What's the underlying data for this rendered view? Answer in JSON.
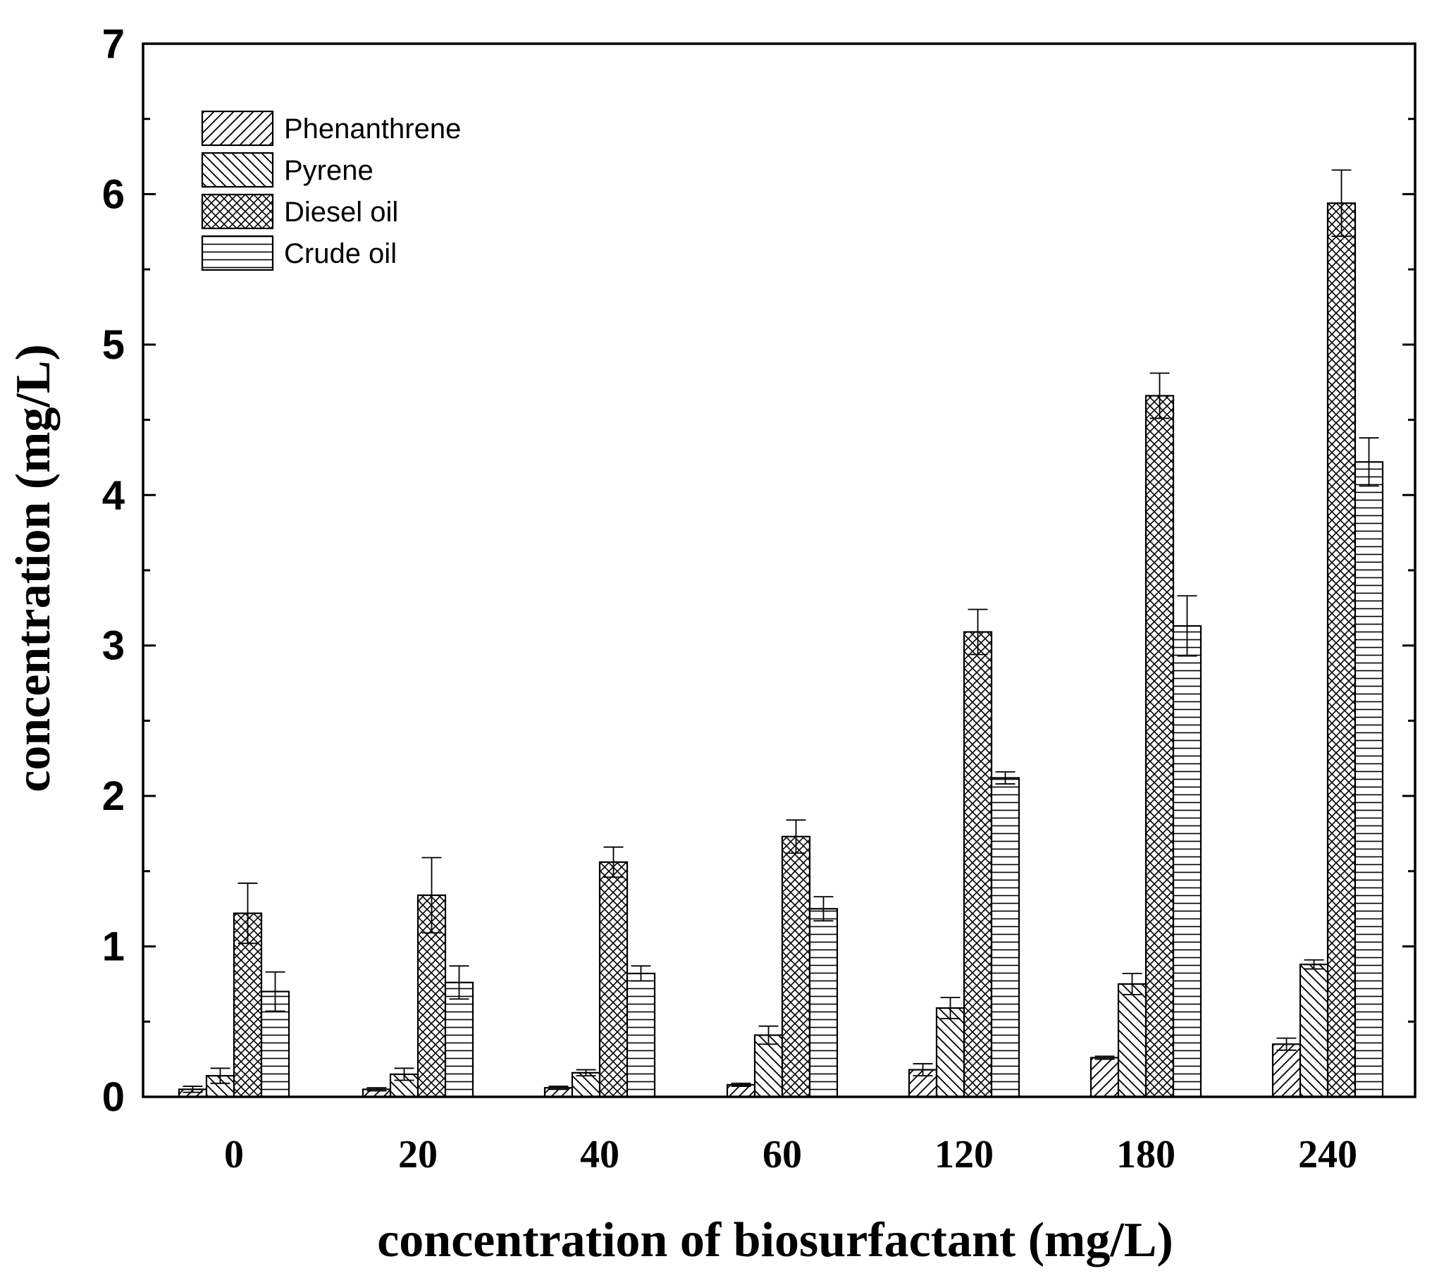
{
  "chart_data": {
    "type": "bar",
    "title": "",
    "xlabel": "concentration of biosurfactant (mg/L)",
    "ylabel": "concentration (mg/L)",
    "ylim": [
      0,
      7
    ],
    "yticks": [
      "0",
      "1",
      "2",
      "3",
      "4",
      "5",
      "6",
      "7"
    ],
    "categories": [
      "0",
      "20",
      "40",
      "60",
      "120",
      "180",
      "240"
    ],
    "legend_position": "top-left",
    "grid": false,
    "series": [
      {
        "name": "Phenanthrene",
        "pattern": "diagonal-forward",
        "values": [
          0.05,
          0.05,
          0.06,
          0.08,
          0.18,
          0.26,
          0.35
        ],
        "errors": [
          0.02,
          0.01,
          0.01,
          0.01,
          0.04,
          0.01,
          0.04
        ]
      },
      {
        "name": "Pyrene",
        "pattern": "diagonal-back",
        "values": [
          0.14,
          0.15,
          0.16,
          0.41,
          0.59,
          0.75,
          0.88
        ],
        "errors": [
          0.05,
          0.04,
          0.02,
          0.06,
          0.07,
          0.07,
          0.03
        ]
      },
      {
        "name": "Diesel oil",
        "pattern": "crosshatch",
        "values": [
          1.22,
          1.34,
          1.56,
          1.73,
          3.09,
          4.66,
          5.94
        ],
        "errors": [
          0.2,
          0.25,
          0.1,
          0.11,
          0.15,
          0.15,
          0.22
        ]
      },
      {
        "name": "Crude oil",
        "pattern": "horizontal",
        "values": [
          0.7,
          0.76,
          0.82,
          1.25,
          2.12,
          3.13,
          4.22
        ],
        "errors": [
          0.13,
          0.11,
          0.05,
          0.08,
          0.04,
          0.2,
          0.16
        ]
      }
    ]
  }
}
